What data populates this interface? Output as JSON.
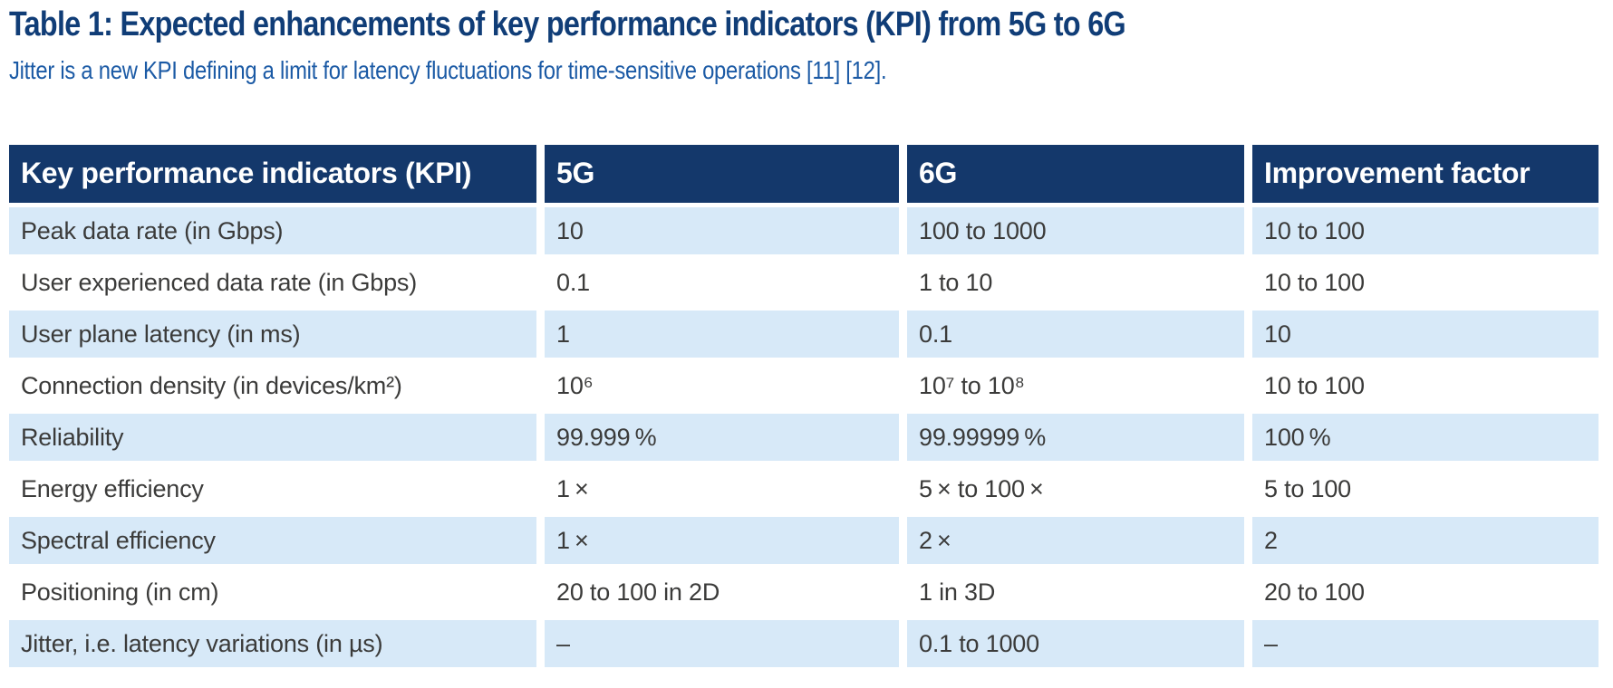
{
  "title": "Table 1: Expected enhancements of key performance indicators (KPI) from 5G to 6G",
  "subtitle": "Jitter is a new KPI defining a limit for latency fluctuations for time-sensitive operations [11] [12].",
  "colors": {
    "title": "#103d77",
    "subtitle": "#1b5aa5",
    "header_bg": "#14386b",
    "header_text": "#ffffff",
    "row_alt_bg": "#d7e9f8",
    "row_bg": "#ffffff",
    "cell_text": "#3b3b3a"
  },
  "table": {
    "columns": [
      "Key performance indicators (KPI)",
      "5G",
      "6G",
      "Improvement factor"
    ],
    "rows": [
      {
        "kpi": "Peak data rate (in Gbps)",
        "five_g": "10",
        "six_g": "100 to 1000",
        "improvement": "10 to 100"
      },
      {
        "kpi": "User experienced data rate (in Gbps)",
        "five_g": "0.1",
        "six_g": "1 to 10",
        "improvement": "10 to 100"
      },
      {
        "kpi": "User plane latency (in ms)",
        "five_g": "1",
        "six_g": "0.1",
        "improvement": "10"
      },
      {
        "kpi": "Connection density (in devices/km²)",
        "five_g": "10⁶",
        "six_g": "10⁷ to 10⁸",
        "improvement": "10 to 100"
      },
      {
        "kpi": "Reliability",
        "five_g": "99.999 %",
        "six_g": "99.99999 %",
        "improvement": "100 %"
      },
      {
        "kpi": "Energy efficiency",
        "five_g": "1 ×",
        "six_g": "5 × to 100 ×",
        "improvement": "5 to 100"
      },
      {
        "kpi": "Spectral efficiency",
        "five_g": "1 ×",
        "six_g": "2 ×",
        "improvement": "2"
      },
      {
        "kpi": "Positioning (in cm)",
        "five_g": "20 to 100 in 2D",
        "six_g": "1 in 3D",
        "improvement": "20 to 100"
      },
      {
        "kpi": "Jitter, i.e. latency variations (in µs)",
        "five_g": "–",
        "six_g": "0.1 to 1000",
        "improvement": "–"
      }
    ]
  }
}
